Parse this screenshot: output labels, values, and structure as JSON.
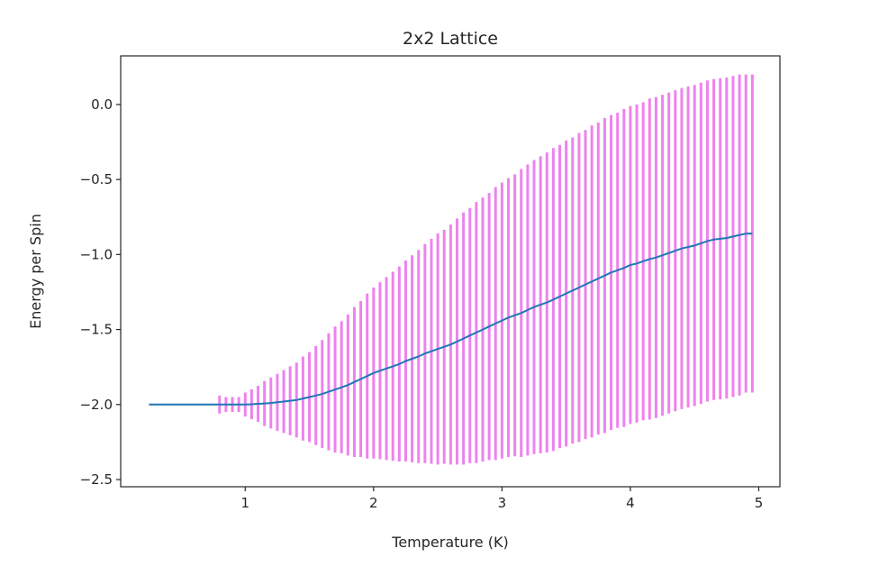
{
  "chart_data": {
    "type": "line",
    "title": "2x2 Lattice",
    "xlabel": "Temperature (K)",
    "ylabel": "Energy per Spin",
    "xlim": [
      0.03,
      5.165
    ],
    "ylim": [
      -2.548,
      0.324
    ],
    "xticks": [
      1,
      2,
      3,
      4,
      5
    ],
    "xtick_labels": [
      "1",
      "2",
      "3",
      "4",
      "5"
    ],
    "yticks": [
      0.0,
      -0.5,
      -1.0,
      -1.5,
      -2.0,
      -2.5
    ],
    "ytick_labels": [
      "0.0",
      "−0.5",
      "−1.0",
      "−1.5",
      "−2.0",
      "−2.5"
    ],
    "grid": false,
    "line_color": "#1f77b4",
    "errorbar_color": "#ee82ee",
    "series": [
      {
        "x": [
          0.25,
          0.3,
          0.35,
          0.4,
          0.45,
          0.5,
          0.55,
          0.6,
          0.65,
          0.7,
          0.75,
          0.8,
          0.85,
          0.9,
          0.95,
          1.0,
          1.05,
          1.1,
          1.15,
          1.2,
          1.25,
          1.3,
          1.35,
          1.4,
          1.45,
          1.5,
          1.55,
          1.6,
          1.65,
          1.7,
          1.75,
          1.8,
          1.85,
          1.9,
          1.95,
          2.0,
          2.05,
          2.1,
          2.15,
          2.2,
          2.25,
          2.3,
          2.35,
          2.4,
          2.45,
          2.5,
          2.55,
          2.6,
          2.65,
          2.7,
          2.75,
          2.8,
          2.85,
          2.9,
          2.95,
          3.0,
          3.05,
          3.1,
          3.15,
          3.2,
          3.25,
          3.3,
          3.35,
          3.4,
          3.45,
          3.5,
          3.55,
          3.6,
          3.65,
          3.7,
          3.75,
          3.8,
          3.85,
          3.9,
          3.95,
          4.0,
          4.05,
          4.1,
          4.15,
          4.2,
          4.25,
          4.3,
          4.35,
          4.4,
          4.45,
          4.5,
          4.55,
          4.6,
          4.65,
          4.7,
          4.75,
          4.8,
          4.85,
          4.9,
          4.95
        ],
        "y": [
          -2.0,
          -2.0,
          -2.0,
          -2.0,
          -2.0,
          -2.0,
          -2.0,
          -2.0,
          -2.0,
          -2.0,
          -2.0,
          -2.0,
          -2.0,
          -2.0,
          -2.0,
          -2.0,
          -1.998,
          -1.995,
          -1.993,
          -1.99,
          -1.985,
          -1.98,
          -1.975,
          -1.97,
          -1.96,
          -1.95,
          -1.94,
          -1.93,
          -1.915,
          -1.9,
          -1.885,
          -1.87,
          -1.85,
          -1.83,
          -1.81,
          -1.79,
          -1.775,
          -1.76,
          -1.745,
          -1.73,
          -1.71,
          -1.695,
          -1.68,
          -1.66,
          -1.645,
          -1.63,
          -1.615,
          -1.6,
          -1.58,
          -1.56,
          -1.54,
          -1.52,
          -1.5,
          -1.48,
          -1.46,
          -1.44,
          -1.42,
          -1.405,
          -1.39,
          -1.37,
          -1.35,
          -1.335,
          -1.32,
          -1.3,
          -1.28,
          -1.26,
          -1.24,
          -1.22,
          -1.2,
          -1.18,
          -1.16,
          -1.14,
          -1.12,
          -1.105,
          -1.09,
          -1.07,
          -1.06,
          -1.045,
          -1.03,
          -1.02,
          -1.005,
          -0.99,
          -0.975,
          -0.96,
          -0.95,
          -0.94,
          -0.925,
          -0.91,
          -0.9,
          -0.895,
          -0.89,
          -0.88,
          -0.87,
          -0.86,
          -0.86
        ],
        "yerr": [
          0,
          0,
          0,
          0,
          0,
          0,
          0,
          0,
          0,
          0,
          0,
          0.06,
          0.05,
          0.05,
          0.05,
          0.08,
          0.1,
          0.12,
          0.15,
          0.17,
          0.19,
          0.21,
          0.23,
          0.25,
          0.28,
          0.3,
          0.33,
          0.36,
          0.39,
          0.42,
          0.44,
          0.47,
          0.5,
          0.52,
          0.55,
          0.57,
          0.59,
          0.61,
          0.63,
          0.65,
          0.67,
          0.69,
          0.71,
          0.73,
          0.75,
          0.77,
          0.78,
          0.8,
          0.82,
          0.84,
          0.85,
          0.87,
          0.88,
          0.89,
          0.91,
          0.92,
          0.93,
          0.94,
          0.96,
          0.97,
          0.98,
          0.99,
          1.0,
          1.01,
          1.01,
          1.02,
          1.02,
          1.03,
          1.03,
          1.04,
          1.04,
          1.05,
          1.05,
          1.05,
          1.06,
          1.06,
          1.06,
          1.06,
          1.07,
          1.07,
          1.07,
          1.07,
          1.07,
          1.07,
          1.07,
          1.07,
          1.07,
          1.07,
          1.07,
          1.07,
          1.07,
          1.07,
          1.07,
          1.06,
          1.06
        ]
      }
    ]
  }
}
